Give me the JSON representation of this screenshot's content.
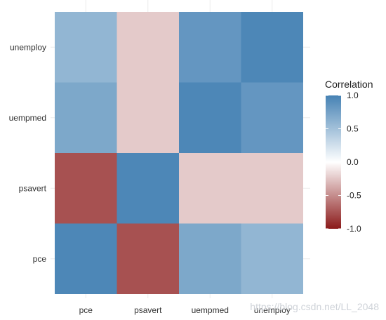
{
  "chart_data": {
    "type": "heatmap",
    "x_categories": [
      "pce",
      "psavert",
      "uempmed",
      "unemploy"
    ],
    "y_categories": [
      "pce",
      "psavert",
      "uempmed",
      "unemploy"
    ],
    "values": [
      [
        1.0,
        -0.79,
        0.73,
        0.61
      ],
      [
        -0.79,
        1.0,
        -0.24,
        -0.24
      ],
      [
        0.73,
        -0.24,
        1.0,
        0.87
      ],
      [
        0.61,
        -0.24,
        0.87,
        1.0
      ]
    ],
    "legend": {
      "title": "Correlation",
      "ticks": [
        1.0,
        0.5,
        0.0,
        -0.5,
        -1.0
      ],
      "tick_labels": [
        "1.0",
        "0.5",
        "0.0",
        "-0.5",
        "-1.0"
      ],
      "range": [
        -1.0,
        1.0
      ],
      "colors": {
        "low": "#8b1a1a",
        "mid": "#ffffff",
        "high": "#4682b4"
      },
      "position": "right"
    },
    "grid": true
  },
  "watermark": "https://blog.csdn.net/LL_2048"
}
